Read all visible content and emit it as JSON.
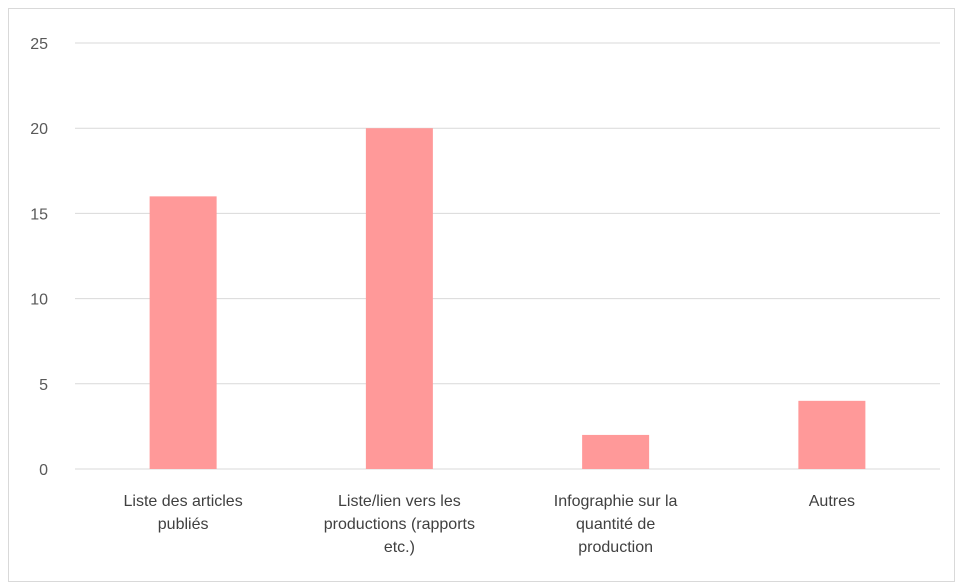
{
  "chart_data": {
    "type": "bar",
    "categories": [
      [
        "Liste des articles",
        "publiés"
      ],
      [
        "Liste/lien vers les",
        "productions (rapports",
        "etc.)"
      ],
      [
        "Infographie sur la",
        "quantité de",
        "production"
      ],
      [
        "Autres"
      ]
    ],
    "values": [
      16,
      20,
      2,
      4
    ],
    "ylim": [
      0,
      25
    ],
    "yticks": [
      0,
      5,
      10,
      15,
      20,
      25
    ],
    "grid": true,
    "colors": {
      "bar": "#ff9999",
      "grid": "#d9d9d9",
      "axis": "#d9d9d9"
    }
  }
}
